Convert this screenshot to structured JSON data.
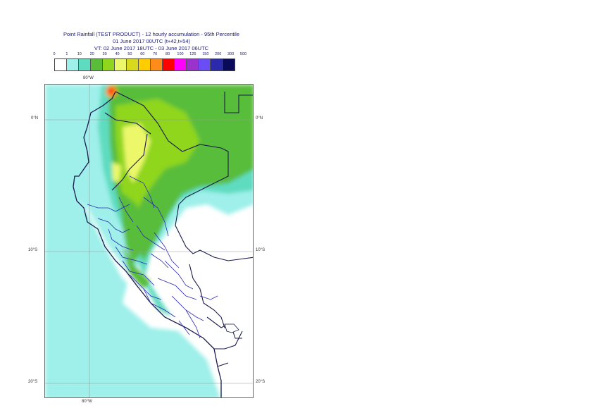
{
  "title": {
    "line1": "Point Rainfall (TEST PRODUCT) - 12 hourly accumulation - 95th Percentile",
    "line2": "01 June 2017 00UTC (t+42,t+54)",
    "line3": "VT: 02 June 2017 18UTC - 03 June 2017 06UTC"
  },
  "legend": {
    "labels": [
      "0",
      "1",
      "10",
      "20",
      "30",
      "40",
      "50",
      "60",
      "70",
      "80",
      "100",
      "125",
      "150",
      "200",
      "300",
      "500"
    ],
    "colors": [
      "#ffffff",
      "#9ff0ea",
      "#5fdcc0",
      "#59bd3a",
      "#8fd61c",
      "#ecf76a",
      "#d8d81d",
      "#ffcc00",
      "#ff8c1a",
      "#ff0000",
      "#ff00ff",
      "#9933cc",
      "#6a4df5",
      "#2a2aaa",
      "#0a0a5a"
    ]
  },
  "axes": {
    "lon_top": "80°W",
    "lon_bottom": "80°W",
    "lat_left": [
      "0°N",
      "10°S",
      "20°S"
    ],
    "lat_right": [
      "0°N",
      "10°S",
      "20°S"
    ]
  }
}
